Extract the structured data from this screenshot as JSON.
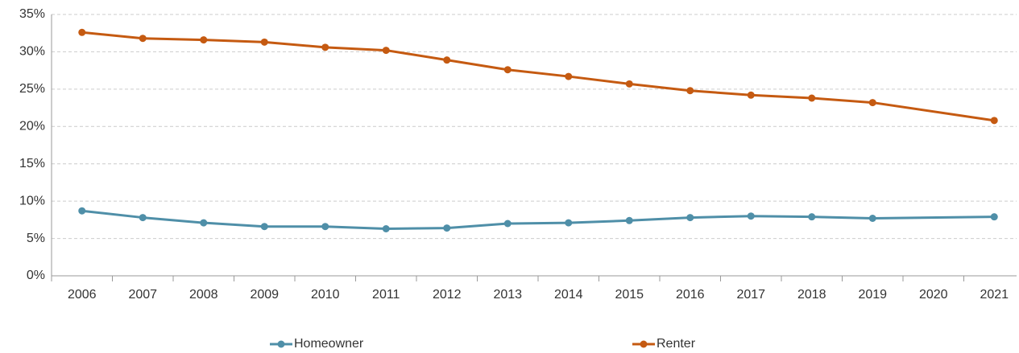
{
  "chart_data": {
    "type": "line",
    "x": [
      2006,
      2007,
      2008,
      2009,
      2010,
      2011,
      2012,
      2013,
      2014,
      2015,
      2016,
      2017,
      2018,
      2019,
      2021
    ],
    "xlim": [
      2005.5,
      2021.5
    ],
    "xticks": [
      2006,
      2007,
      2008,
      2009,
      2010,
      2011,
      2012,
      2013,
      2014,
      2015,
      2016,
      2017,
      2018,
      2019,
      2020,
      2021
    ],
    "series": [
      {
        "name": "Homeowner",
        "color": "#4f8fa8",
        "values": [
          8.7,
          7.8,
          7.1,
          6.6,
          6.6,
          6.3,
          6.4,
          7.0,
          7.1,
          7.4,
          7.8,
          8.0,
          7.9,
          7.7,
          7.9
        ]
      },
      {
        "name": "Renter",
        "color": "#c55a11",
        "values": [
          32.6,
          31.8,
          31.6,
          31.3,
          30.6,
          30.2,
          28.9,
          27.6,
          26.7,
          25.7,
          24.8,
          24.2,
          23.8,
          23.2,
          20.8
        ]
      }
    ],
    "ylim": [
      0,
      35
    ],
    "yticks": [
      {
        "value": 0,
        "label": "0%"
      },
      {
        "value": 5,
        "label": "5%"
      },
      {
        "value": 10,
        "label": "10%"
      },
      {
        "value": 15,
        "label": "15%"
      },
      {
        "value": 20,
        "label": "20%"
      },
      {
        "value": 25,
        "label": "25%"
      },
      {
        "value": 30,
        "label": "30%"
      },
      {
        "value": 35,
        "label": "35%"
      }
    ],
    "grid": true,
    "legend": "bottom"
  }
}
